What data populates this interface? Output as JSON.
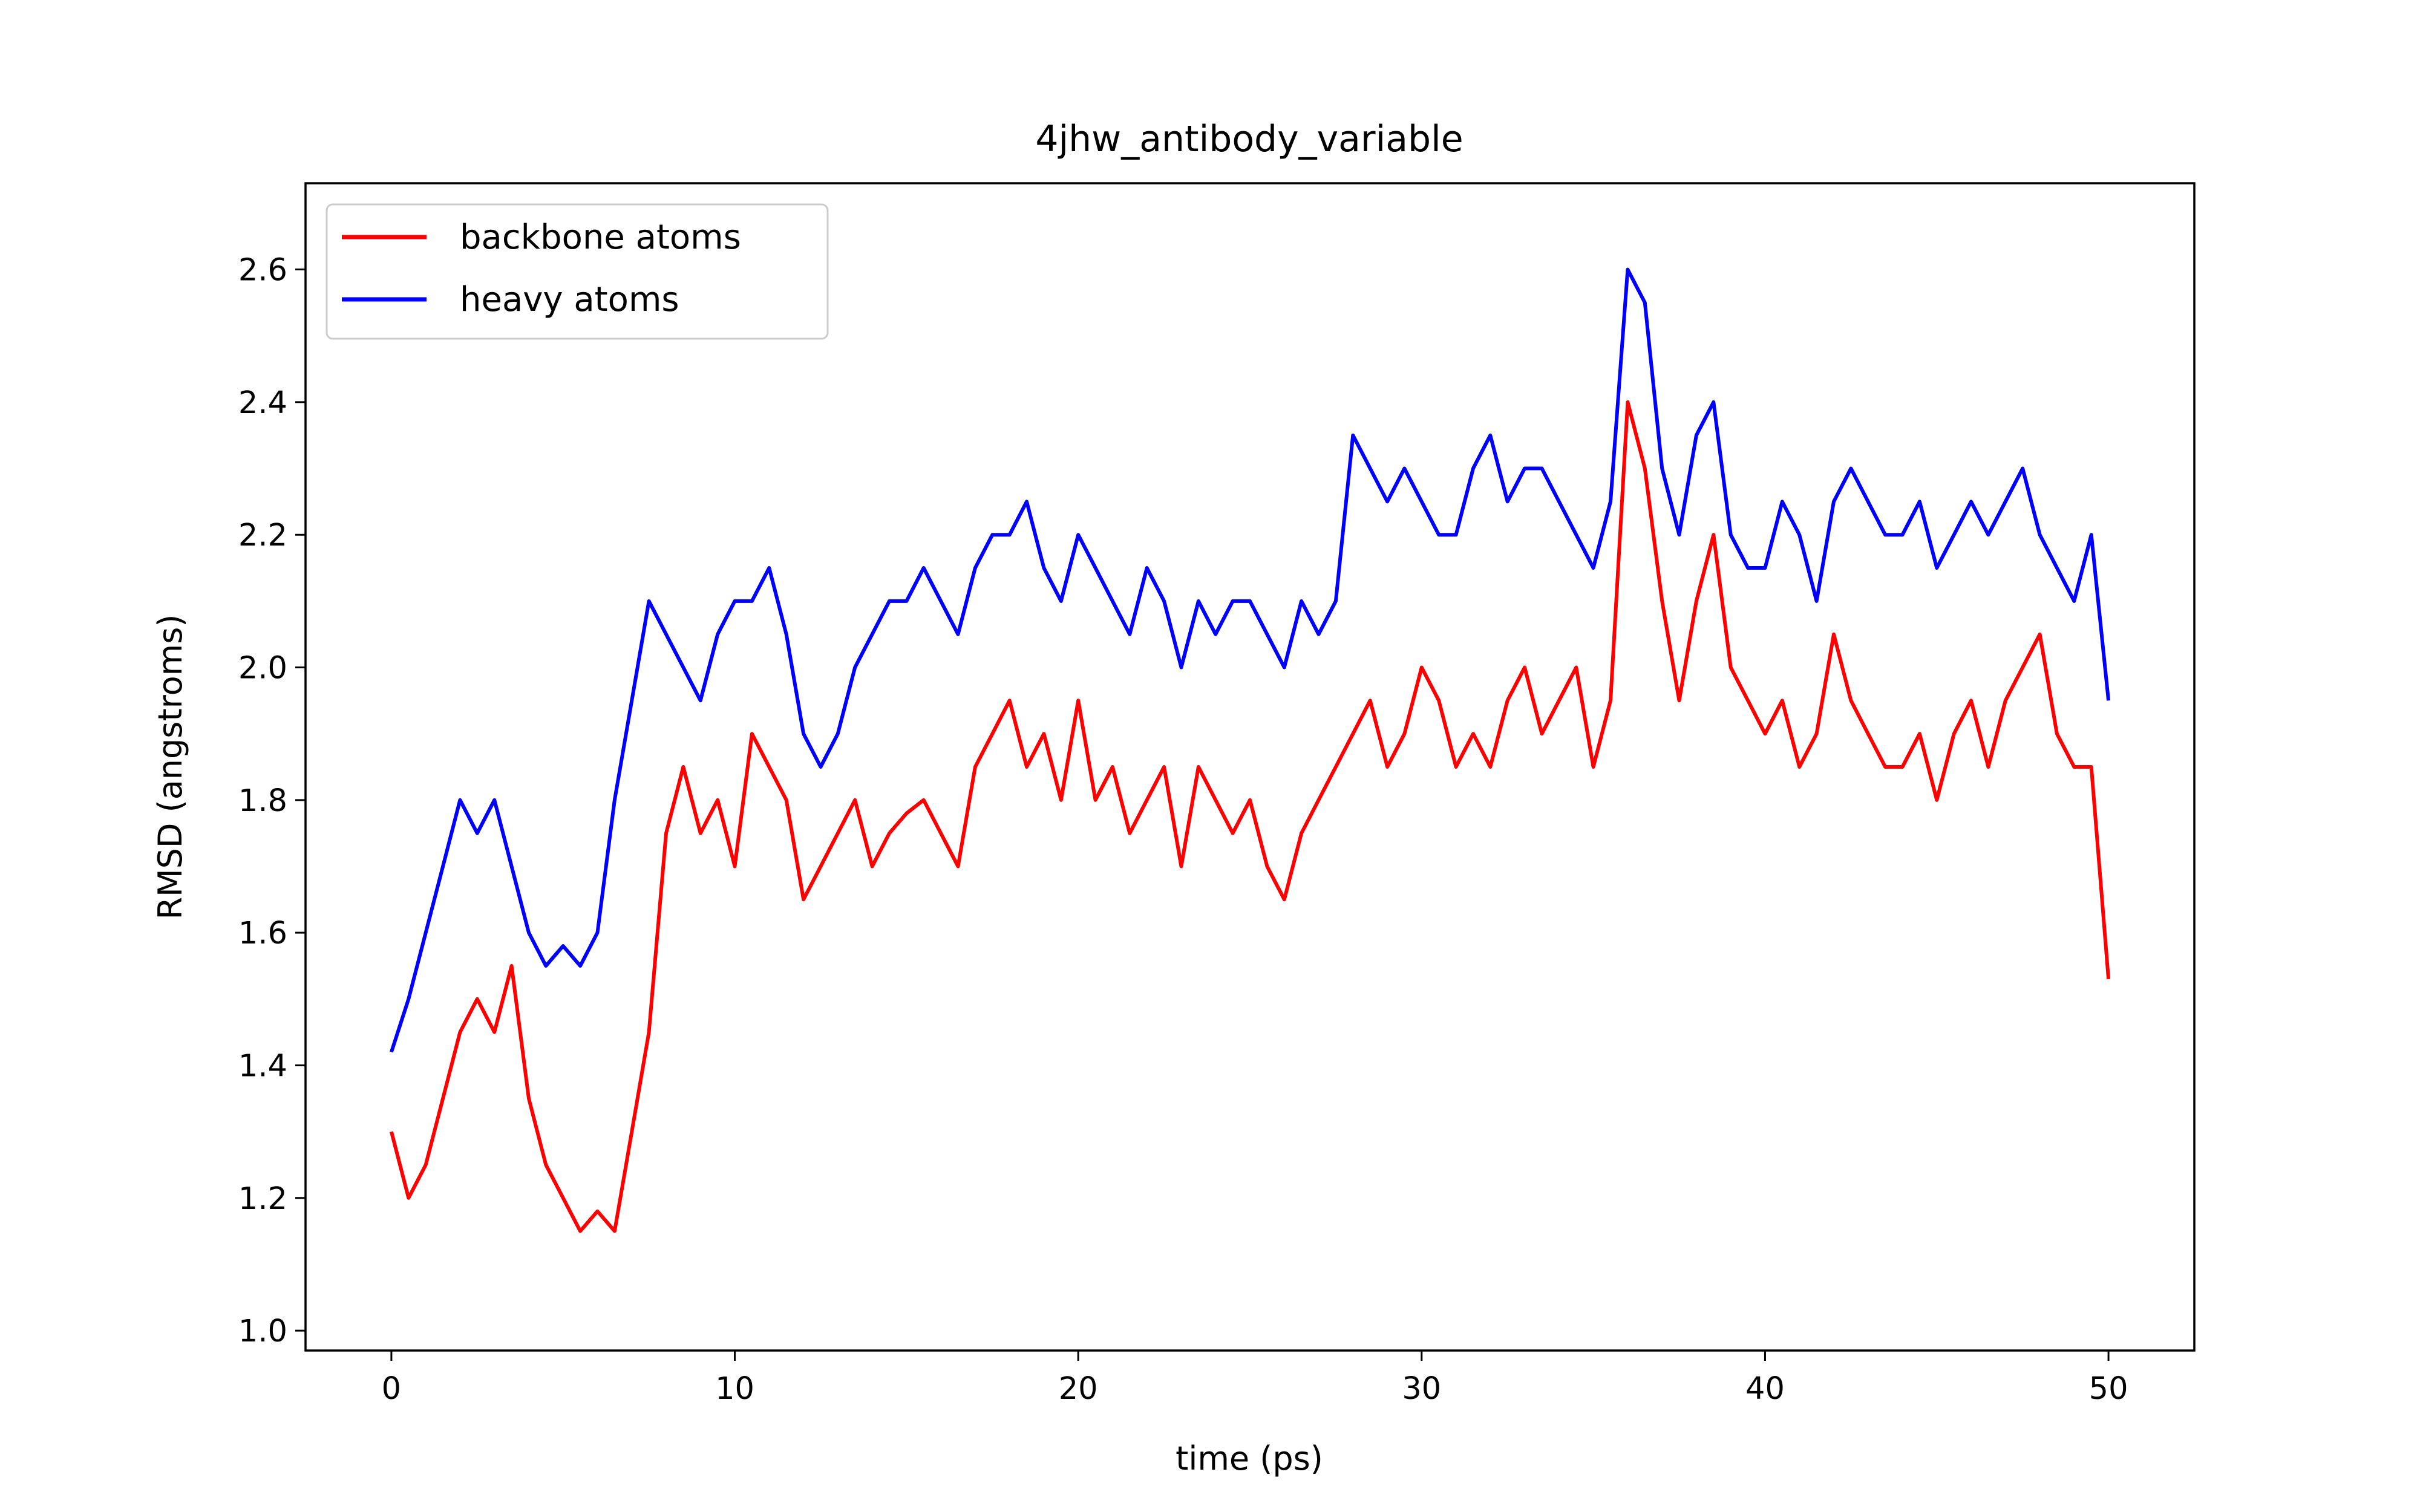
{
  "chart_data": {
    "type": "line",
    "title": "4jhw_antibody_variable",
    "xlabel": "time (ps)",
    "ylabel": "RMSD (angstroms)",
    "xlim": [
      -2.5,
      52.5
    ],
    "ylim": [
      0.97,
      2.73
    ],
    "x_ticks": [
      0,
      10,
      20,
      30,
      40,
      50
    ],
    "x_tick_labels": [
      "0",
      "10",
      "20",
      "30",
      "40",
      "50"
    ],
    "y_ticks": [
      1.0,
      1.2,
      1.4,
      1.6,
      1.8,
      2.0,
      2.2,
      2.4,
      2.6
    ],
    "y_tick_labels": [
      "1.0",
      "1.2",
      "1.4",
      "1.6",
      "1.8",
      "2.0",
      "2.2",
      "2.4",
      "2.6"
    ],
    "grid": false,
    "legend_position": "top-left",
    "series": [
      {
        "name": "backbone atoms",
        "color": "#ff0000",
        "x": [
          0,
          0.5,
          1,
          1.5,
          2,
          2.5,
          3,
          3.5,
          4,
          4.5,
          5,
          5.5,
          6,
          6.5,
          7,
          7.5,
          8,
          8.5,
          9,
          9.5,
          10,
          10.5,
          11,
          11.5,
          12,
          12.5,
          13,
          13.5,
          14,
          14.5,
          15,
          15.5,
          16,
          16.5,
          17,
          17.5,
          18,
          18.5,
          19,
          19.5,
          20,
          20.5,
          21,
          21.5,
          22,
          22.5,
          23,
          23.5,
          24,
          24.5,
          25,
          25.5,
          26,
          26.5,
          27,
          27.5,
          28,
          28.5,
          29,
          29.5,
          30,
          30.5,
          31,
          31.5,
          32,
          32.5,
          33,
          33.5,
          34,
          34.5,
          35,
          35.5,
          36,
          36.5,
          37,
          37.5,
          38,
          38.5,
          39,
          39.5,
          40,
          40.5,
          41,
          41.5,
          42,
          42.5,
          43,
          43.5,
          44,
          44.5,
          45,
          45.5,
          46,
          46.5,
          47,
          47.5,
          48,
          48.5,
          49,
          49.5,
          50
        ],
        "y": [
          1.3,
          1.2,
          1.25,
          1.35,
          1.45,
          1.5,
          1.45,
          1.55,
          1.35,
          1.25,
          1.2,
          1.15,
          1.18,
          1.15,
          1.3,
          1.45,
          1.75,
          1.85,
          1.75,
          1.8,
          1.7,
          1.9,
          1.85,
          1.8,
          1.65,
          1.7,
          1.75,
          1.8,
          1.7,
          1.75,
          1.78,
          1.8,
          1.75,
          1.7,
          1.85,
          1.9,
          1.95,
          1.85,
          1.9,
          1.8,
          1.95,
          1.8,
          1.85,
          1.75,
          1.8,
          1.85,
          1.7,
          1.85,
          1.8,
          1.75,
          1.8,
          1.7,
          1.65,
          1.75,
          1.8,
          1.85,
          1.9,
          1.95,
          1.85,
          1.9,
          2.0,
          1.95,
          1.85,
          1.9,
          1.85,
          1.95,
          2.0,
          1.9,
          1.95,
          2.0,
          1.85,
          1.95,
          2.4,
          2.3,
          2.1,
          1.95,
          2.1,
          2.2,
          2.0,
          1.95,
          1.9,
          1.95,
          1.85,
          1.9,
          2.05,
          1.95,
          1.9,
          1.85,
          1.85,
          1.9,
          1.8,
          1.9,
          1.95,
          1.85,
          1.95,
          2.0,
          2.05,
          1.9,
          1.85,
          1.85,
          1.53
        ]
      },
      {
        "name": "heavy atoms",
        "color": "#0000ff",
        "x": [
          0,
          0.5,
          1,
          1.5,
          2,
          2.5,
          3,
          3.5,
          4,
          4.5,
          5,
          5.5,
          6,
          6.5,
          7,
          7.5,
          8,
          8.5,
          9,
          9.5,
          10,
          10.5,
          11,
          11.5,
          12,
          12.5,
          13,
          13.5,
          14,
          14.5,
          15,
          15.5,
          16,
          16.5,
          17,
          17.5,
          18,
          18.5,
          19,
          19.5,
          20,
          20.5,
          21,
          21.5,
          22,
          22.5,
          23,
          23.5,
          24,
          24.5,
          25,
          25.5,
          26,
          26.5,
          27,
          27.5,
          28,
          28.5,
          29,
          29.5,
          30,
          30.5,
          31,
          31.5,
          32,
          32.5,
          33,
          33.5,
          34,
          34.5,
          35,
          35.5,
          36,
          36.5,
          37,
          37.5,
          38,
          38.5,
          39,
          39.5,
          40,
          40.5,
          41,
          41.5,
          42,
          42.5,
          43,
          43.5,
          44,
          44.5,
          45,
          45.5,
          46,
          46.5,
          47,
          47.5,
          48,
          48.5,
          49,
          49.5,
          50
        ],
        "y": [
          1.42,
          1.5,
          1.6,
          1.7,
          1.8,
          1.75,
          1.8,
          1.7,
          1.6,
          1.55,
          1.58,
          1.55,
          1.6,
          1.8,
          1.95,
          2.1,
          2.05,
          2.0,
          1.95,
          2.05,
          2.1,
          2.1,
          2.15,
          2.05,
          1.9,
          1.85,
          1.9,
          2.0,
          2.05,
          2.1,
          2.1,
          2.15,
          2.1,
          2.05,
          2.15,
          2.2,
          2.2,
          2.25,
          2.15,
          2.1,
          2.2,
          2.15,
          2.1,
          2.05,
          2.15,
          2.1,
          2.0,
          2.1,
          2.05,
          2.1,
          2.1,
          2.05,
          2.0,
          2.1,
          2.05,
          2.1,
          2.35,
          2.3,
          2.25,
          2.3,
          2.25,
          2.2,
          2.2,
          2.3,
          2.35,
          2.25,
          2.3,
          2.3,
          2.25,
          2.2,
          2.15,
          2.25,
          2.6,
          2.55,
          2.3,
          2.2,
          2.35,
          2.4,
          2.2,
          2.15,
          2.15,
          2.25,
          2.2,
          2.1,
          2.25,
          2.3,
          2.25,
          2.2,
          2.2,
          2.25,
          2.15,
          2.2,
          2.25,
          2.2,
          2.25,
          2.3,
          2.2,
          2.15,
          2.1,
          2.2,
          1.95
        ]
      }
    ]
  }
}
